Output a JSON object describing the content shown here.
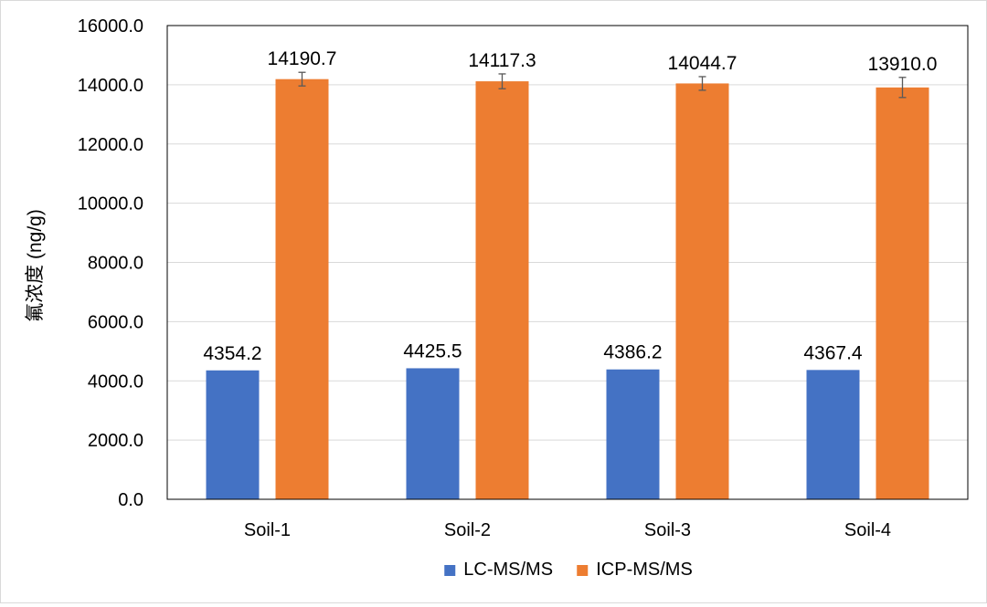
{
  "chart_data": {
    "type": "bar",
    "title": "",
    "xlabel": "",
    "ylabel": "氟浓度 (ng/g)",
    "categories": [
      "Soil-1",
      "Soil-2",
      "Soil-3",
      "Soil-4"
    ],
    "ylim": [
      0,
      16000
    ],
    "y_ticks": [
      0,
      2000,
      4000,
      6000,
      8000,
      10000,
      12000,
      14000,
      16000
    ],
    "y_tick_labels": [
      "0.0",
      "2000.0",
      "4000.0",
      "6000.0",
      "8000.0",
      "10000.0",
      "12000.0",
      "14000.0",
      "16000.0"
    ],
    "grid": true,
    "legend_position": "bottom",
    "series": [
      {
        "name": "LC-MS/MS",
        "color": "#4472C4",
        "values": [
          4354.2,
          4425.5,
          4386.2,
          4367.4
        ],
        "labels": [
          "4354.2",
          "4425.5",
          "4386.2",
          "4367.4"
        ]
      },
      {
        "name": "ICP-MS/MS",
        "color": "#ED7D31",
        "values": [
          14190.7,
          14117.3,
          14044.7,
          13910.0
        ],
        "labels": [
          "14190.7",
          "14117.3",
          "14044.7",
          "13910.0"
        ],
        "error": [
          230,
          250,
          230,
          340
        ]
      }
    ]
  }
}
